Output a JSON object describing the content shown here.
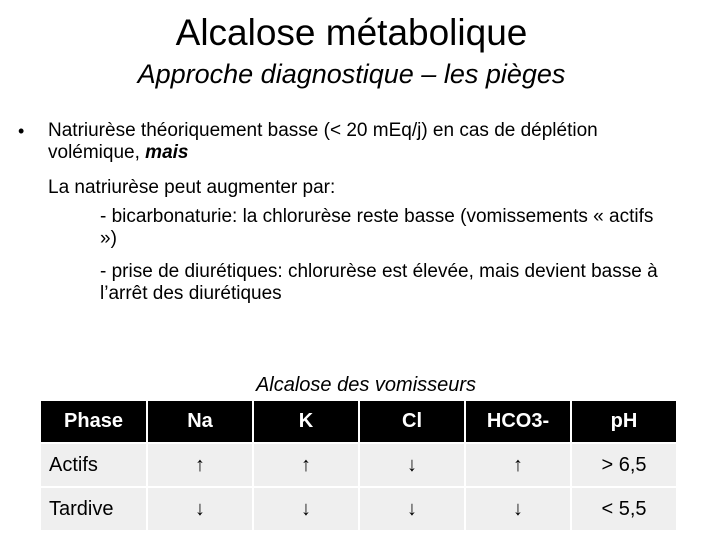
{
  "slide": {
    "title": "Alcalose métabolique",
    "subtitle": "Approche diagnostique – les pièges"
  },
  "body": {
    "bullet": "•",
    "p1_text": "Natriurèse théoriquement basse (< 20 mEq/j) en cas de déplétion volémique, ",
    "p1_emph": "mais",
    "p2": "La natriurèse peut augmenter par:",
    "p3": "- bicarbonaturie: la chlorurèse reste basse (vomissements « actifs »)",
    "p4": "- prise de diurétiques: chlorurèse est élevée, mais devient basse à l’arrêt des diurétiques"
  },
  "table": {
    "caption": "Alcalose des vomisseurs",
    "headers": [
      "Phase",
      "Na",
      "K",
      "Cl",
      "HCO3-",
      "pH"
    ],
    "rows": [
      [
        "Actifs",
        "↑",
        "↑",
        "↓",
        "↑",
        "> 6,5"
      ],
      [
        "Tardive",
        "↓",
        "↓",
        "↓",
        "↓",
        "< 5,5"
      ]
    ]
  }
}
